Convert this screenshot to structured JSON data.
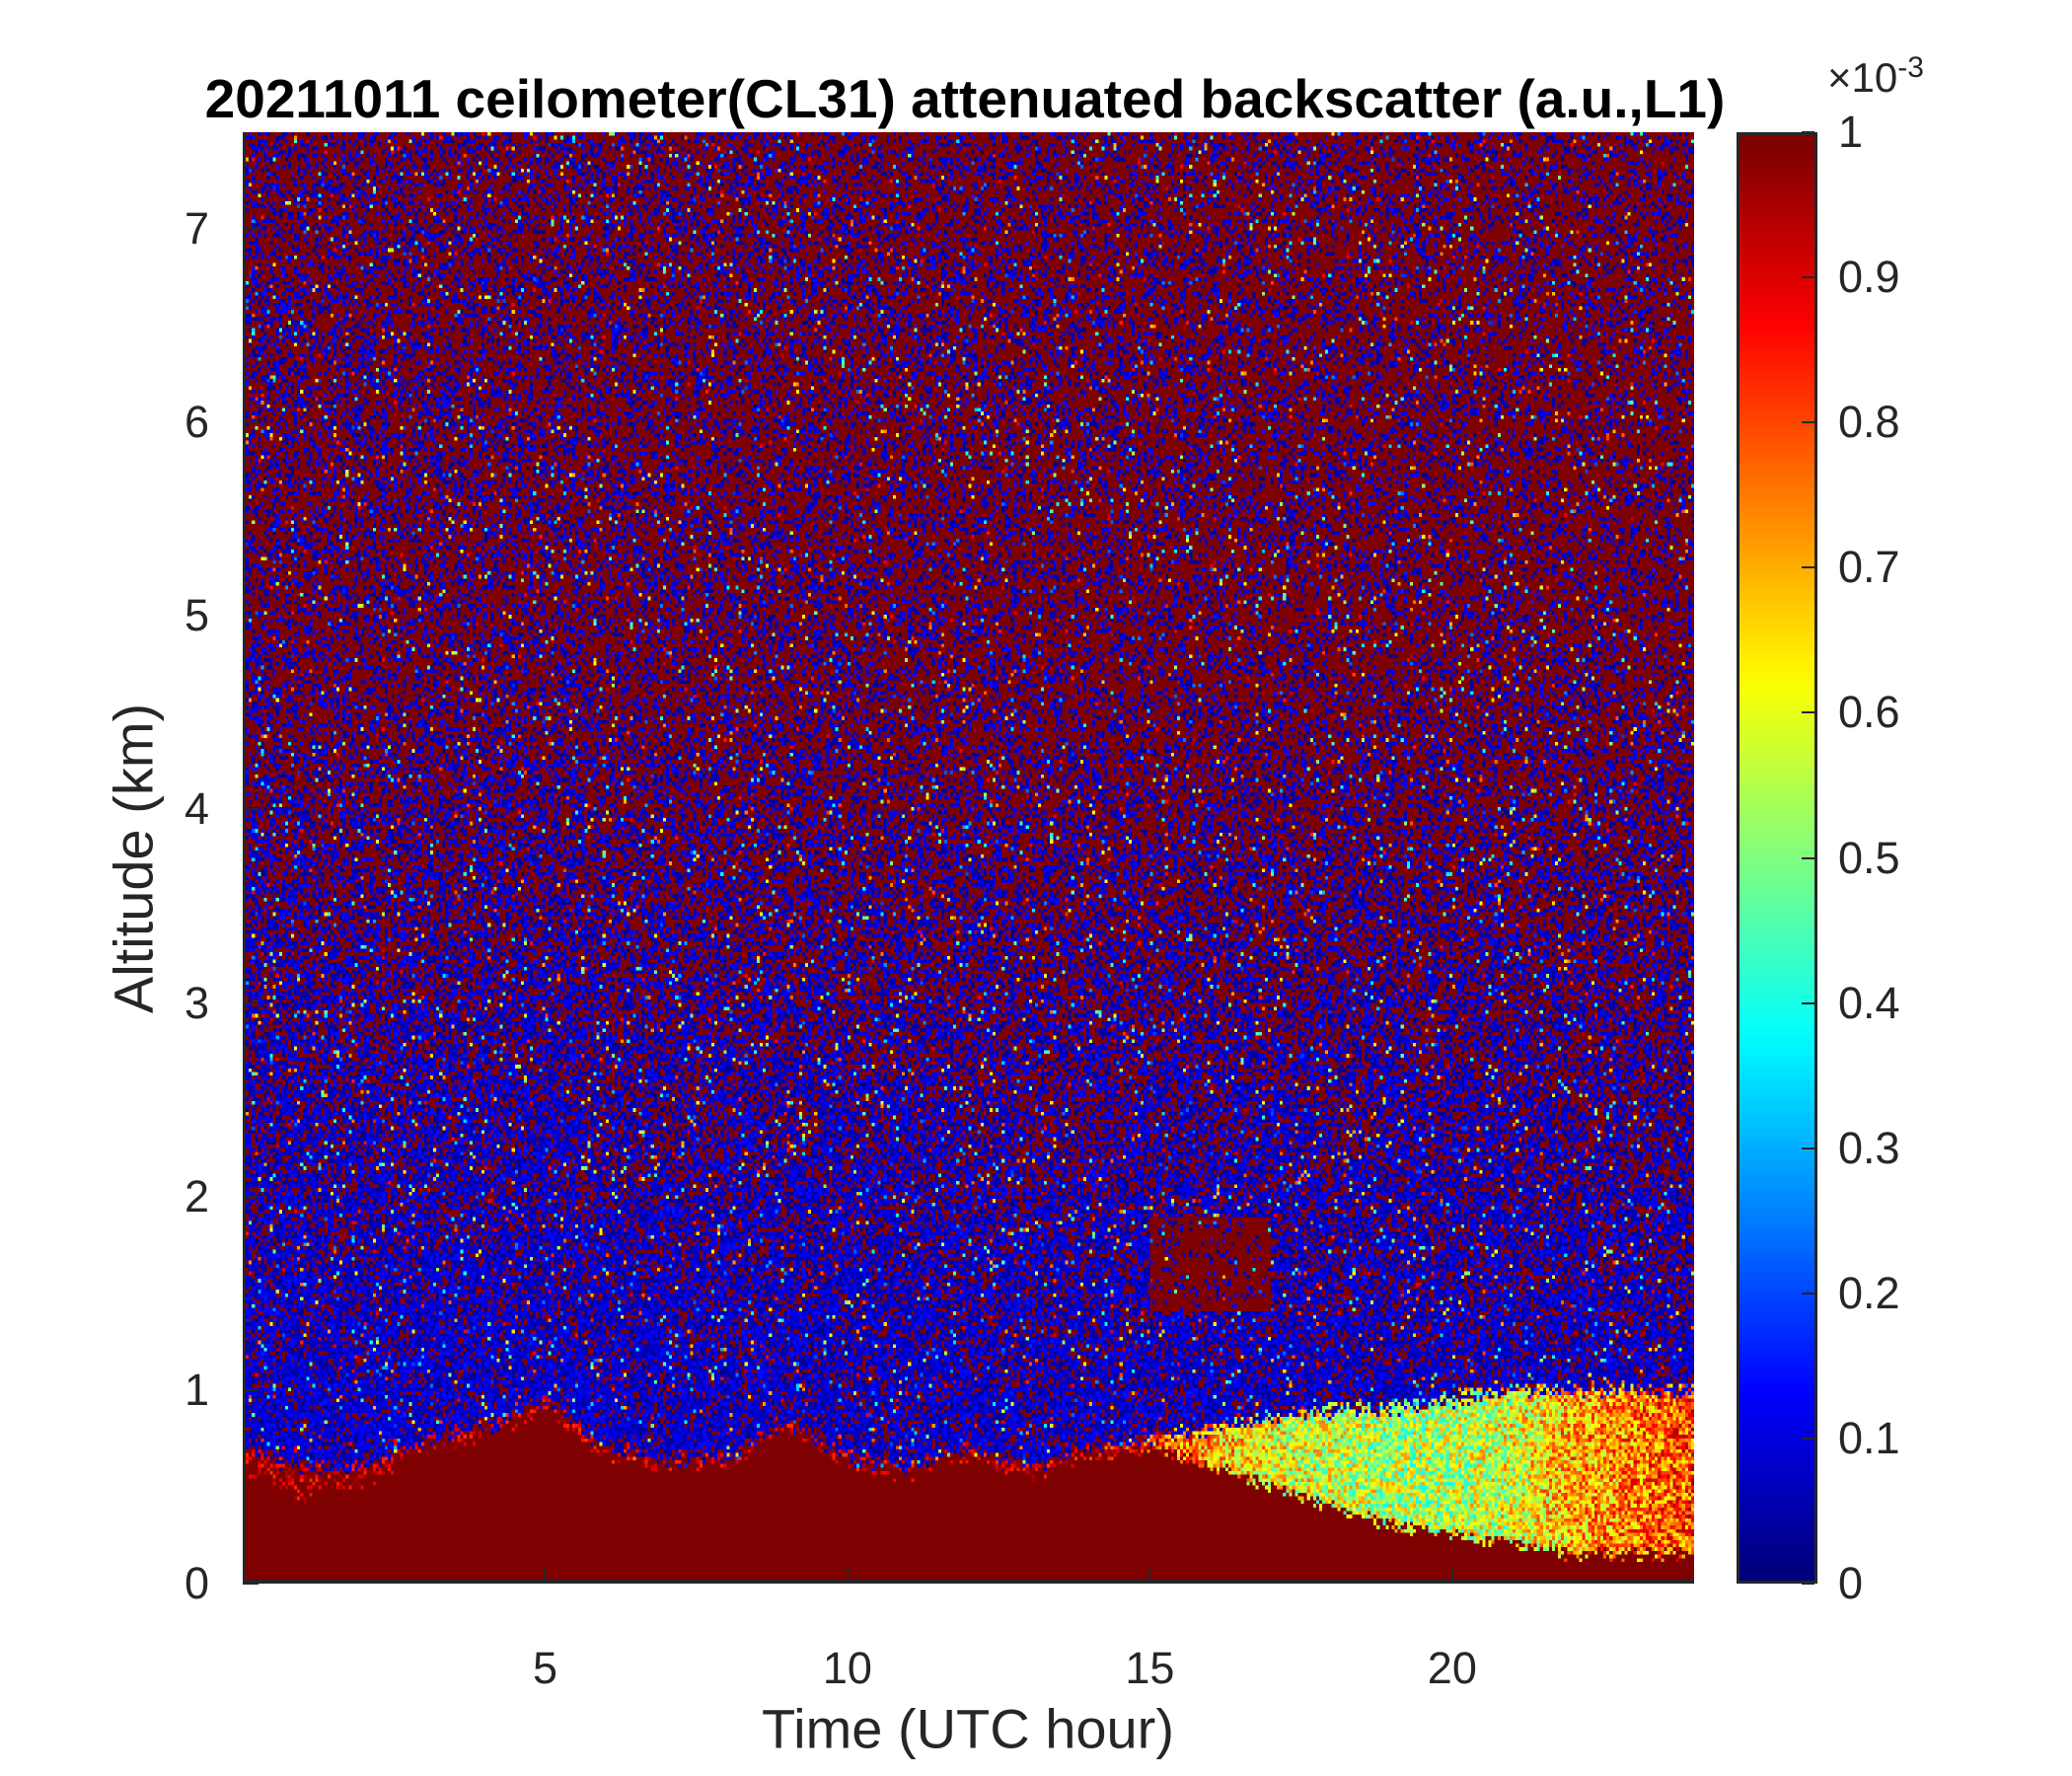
{
  "chart_data": {
    "type": "heatmap",
    "title": "20211011 ceilometer(CL31) attenuated backscatter (a.u.,L1)",
    "xlabel": "Time (UTC hour)",
    "ylabel": "Altitude (km)",
    "xlim": [
      0,
      24
    ],
    "ylim": [
      0,
      7.5
    ],
    "xticks": [
      5,
      10,
      15,
      20
    ],
    "xtick_labels": [
      "5",
      "10",
      "15",
      "20"
    ],
    "yticks": [
      0,
      1,
      2,
      3,
      4,
      5,
      6,
      7
    ],
    "ytick_labels": [
      "0",
      "1",
      "2",
      "3",
      "4",
      "5",
      "6",
      "7"
    ],
    "colormap": "jet",
    "colorbar": {
      "range": [
        0,
        1
      ],
      "multiplier": "×10",
      "exponent": "-3",
      "ticks": [
        0,
        0.1,
        0.2,
        0.3,
        0.4,
        0.5,
        0.6,
        0.7,
        0.8,
        0.9,
        1
      ],
      "tick_labels": [
        "0",
        "0.1",
        "0.2",
        "0.3",
        "0.4",
        "0.5",
        "0.6",
        "0.7",
        "0.8",
        "0.9",
        "1"
      ]
    },
    "estimated_features": {
      "hours": [
        0,
        1,
        2,
        3,
        4,
        5,
        6,
        7,
        8,
        9,
        10,
        11,
        12,
        13,
        14,
        15,
        16,
        17,
        18,
        19,
        20,
        21,
        22,
        23,
        24
      ],
      "saturated_layer_top_km": [
        0.6,
        0.45,
        0.5,
        0.7,
        0.75,
        0.9,
        0.65,
        0.6,
        0.6,
        0.8,
        0.6,
        0.55,
        0.65,
        0.55,
        0.65,
        0.7,
        0.6,
        0.5,
        0.4,
        0.3,
        0.25,
        0.2,
        0.15,
        0.15,
        0.15
      ],
      "aerosol_layer_top_km": [
        0.7,
        0.6,
        0.6,
        0.75,
        0.8,
        0.95,
        0.7,
        0.65,
        0.65,
        0.85,
        0.65,
        0.6,
        0.7,
        0.6,
        0.7,
        0.75,
        0.8,
        0.85,
        0.9,
        0.9,
        0.95,
        1.0,
        1.0,
        1.0,
        1.0
      ],
      "aerosol_layer_value": [
        1,
        1,
        1,
        1,
        1,
        1,
        1,
        1,
        1,
        1,
        1,
        1,
        1,
        1,
        0.95,
        0.85,
        0.7,
        0.62,
        0.58,
        0.55,
        0.55,
        0.6,
        0.7,
        0.75,
        0.8
      ],
      "cloud_patch": {
        "time_range_h": [
          15,
          17
        ],
        "altitude_range_km": [
          1.4,
          1.9
        ],
        "value": 1
      },
      "upper_noise_saturated_fraction_low_alt": 0.1,
      "upper_noise_saturated_fraction_high_alt": 0.6
    }
  }
}
